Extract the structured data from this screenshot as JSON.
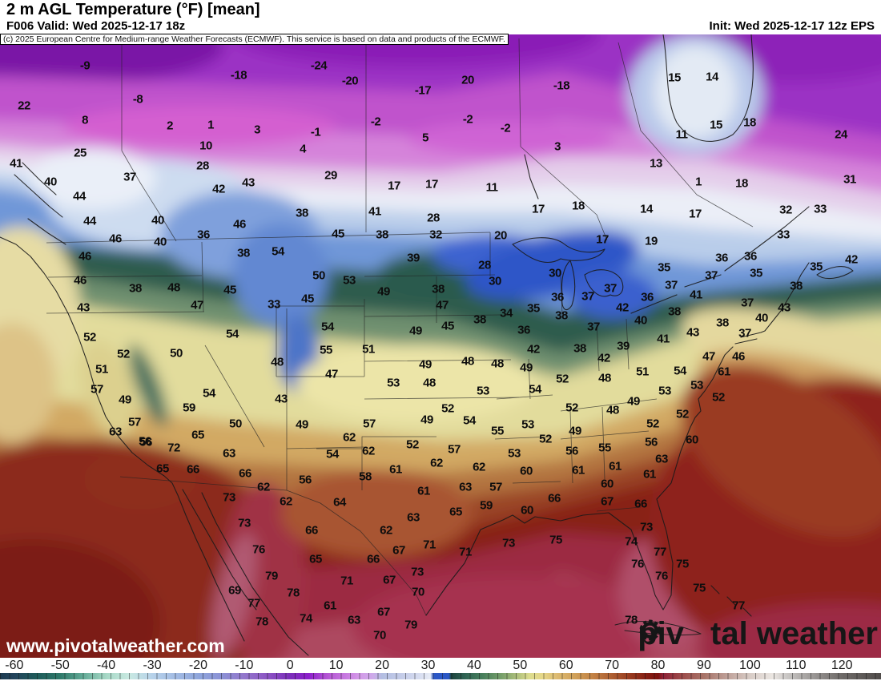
{
  "header": {
    "title": "2 m AGL Temperature (°F) [mean]",
    "valid": "F006 Valid: Wed 2025-12-17 18z",
    "init": "Init: Wed 2025-12-17 12z EPS",
    "copyright": "(c) 2025 European Centre for Medium-range Weather Forecasts (ECMWF). This service is based on data and products of the ECMWF."
  },
  "map": {
    "watermark": "www.pivotalweather.com",
    "logo": {
      "part1": "piv",
      "part2": "tal weather",
      "icon": "gear-icon"
    },
    "units": "°F",
    "station_values": [
      [
        -9,
        106,
        82
      ],
      [
        -18,
        298,
        94
      ],
      [
        22,
        30,
        132
      ],
      [
        -8,
        172,
        124
      ],
      [
        8,
        106,
        150
      ],
      [
        2,
        212,
        157
      ],
      [
        1,
        263,
        156
      ],
      [
        3,
        321,
        162
      ],
      [
        25,
        100,
        191
      ],
      [
        10,
        257,
        182
      ],
      [
        28,
        253,
        207
      ],
      [
        41,
        20,
        204
      ],
      [
        37,
        162,
        221
      ],
      [
        40,
        63,
        227
      ],
      [
        42,
        273,
        236
      ],
      [
        43,
        310,
        228
      ],
      [
        44,
        99,
        245
      ],
      [
        44,
        112,
        276
      ],
      [
        40,
        197,
        275
      ],
      [
        46,
        299,
        280
      ],
      [
        36,
        254,
        293
      ],
      [
        46,
        144,
        298
      ],
      [
        40,
        200,
        302
      ],
      [
        38,
        377,
        266
      ],
      [
        -24,
        398,
        82
      ],
      [
        -20,
        437,
        101
      ],
      [
        20,
        584,
        100
      ],
      [
        -17,
        528,
        113
      ],
      [
        -18,
        701,
        107
      ],
      [
        -2,
        469,
        152
      ],
      [
        -1,
        394,
        165
      ],
      [
        -2,
        584,
        149
      ],
      [
        -2,
        631,
        160
      ],
      [
        5,
        531,
        172
      ],
      [
        4,
        378,
        186
      ],
      [
        3,
        696,
        183
      ],
      [
        29,
        413,
        219
      ],
      [
        17,
        492,
        232
      ],
      [
        17,
        539,
        230
      ],
      [
        11,
        614,
        234
      ],
      [
        17,
        672,
        261
      ],
      [
        18,
        722,
        257
      ],
      [
        41,
        468,
        264
      ],
      [
        28,
        541,
        272
      ],
      [
        45,
        422,
        292
      ],
      [
        38,
        477,
        293
      ],
      [
        32,
        544,
        293
      ],
      [
        20,
        625,
        294
      ],
      [
        15,
        842,
        97
      ],
      [
        14,
        889,
        96
      ],
      [
        18,
        936,
        153
      ],
      [
        15,
        894,
        156
      ],
      [
        24,
        1050,
        168
      ],
      [
        11,
        851,
        168
      ],
      [
        13,
        819,
        204
      ],
      [
        1,
        872,
        227
      ],
      [
        18,
        926,
        229
      ],
      [
        31,
        1061,
        224
      ],
      [
        14,
        807,
        261
      ],
      [
        17,
        868,
        267
      ],
      [
        32,
        981,
        262
      ],
      [
        33,
        1024,
        261
      ],
      [
        33,
        978,
        293
      ],
      [
        19,
        813,
        301
      ],
      [
        17,
        752,
        299
      ],
      [
        46,
        106,
        320
      ],
      [
        38,
        304,
        316
      ],
      [
        54,
        347,
        314
      ],
      [
        46,
        100,
        350
      ],
      [
        38,
        169,
        360
      ],
      [
        48,
        217,
        359
      ],
      [
        45,
        287,
        362
      ],
      [
        43,
        104,
        384
      ],
      [
        47,
        246,
        381
      ],
      [
        33,
        342,
        380
      ],
      [
        52,
        112,
        421
      ],
      [
        54,
        290,
        417
      ],
      [
        52,
        154,
        442
      ],
      [
        50,
        220,
        441
      ],
      [
        48,
        346,
        452
      ],
      [
        51,
        127,
        461
      ],
      [
        57,
        121,
        486
      ],
      [
        54,
        261,
        491
      ],
      [
        43,
        351,
        498
      ],
      [
        49,
        156,
        499
      ],
      [
        59,
        236,
        509
      ],
      [
        57,
        168,
        527
      ],
      [
        50,
        294,
        529
      ],
      [
        63,
        144,
        539
      ],
      [
        56,
        181,
        551
      ],
      [
        65,
        247,
        543
      ],
      [
        49,
        377,
        530
      ],
      [
        39,
        516,
        322
      ],
      [
        28,
        605,
        331
      ],
      [
        30,
        618,
        351
      ],
      [
        30,
        693,
        341
      ],
      [
        50,
        398,
        344
      ],
      [
        53,
        436,
        350
      ],
      [
        49,
        479,
        364
      ],
      [
        38,
        547,
        361
      ],
      [
        45,
        384,
        373
      ],
      [
        47,
        552,
        381
      ],
      [
        35,
        666,
        385
      ],
      [
        34,
        632,
        391
      ],
      [
        36,
        696,
        371
      ],
      [
        38,
        701,
        394
      ],
      [
        38,
        599,
        399
      ],
      [
        54,
        409,
        408
      ],
      [
        45,
        559,
        407
      ],
      [
        36,
        654,
        412
      ],
      [
        49,
        519,
        413
      ],
      [
        55,
        407,
        437
      ],
      [
        51,
        460,
        436
      ],
      [
        42,
        666,
        436
      ],
      [
        47,
        414,
        467
      ],
      [
        49,
        531,
        455
      ],
      [
        48,
        584,
        451
      ],
      [
        48,
        621,
        454
      ],
      [
        49,
        657,
        459
      ],
      [
        52,
        702,
        473
      ],
      [
        53,
        491,
        478
      ],
      [
        48,
        536,
        478
      ],
      [
        53,
        603,
        488
      ],
      [
        54,
        668,
        486
      ],
      [
        52,
        714,
        509
      ],
      [
        52,
        559,
        510
      ],
      [
        49,
        533,
        524
      ],
      [
        54,
        586,
        525
      ],
      [
        55,
        621,
        538
      ],
      [
        53,
        659,
        530
      ],
      [
        49,
        718,
        538
      ],
      [
        52,
        681,
        548
      ],
      [
        57,
        461,
        529
      ],
      [
        62,
        436,
        546
      ],
      [
        52,
        515,
        555
      ],
      [
        36,
        901,
        322
      ],
      [
        36,
        937,
        320
      ],
      [
        35,
        829,
        334
      ],
      [
        35,
        1019,
        333
      ],
      [
        35,
        944,
        341
      ],
      [
        42,
        1063,
        324
      ],
      [
        37,
        888,
        344
      ],
      [
        37,
        838,
        356
      ],
      [
        37,
        762,
        360
      ],
      [
        37,
        734,
        370
      ],
      [
        41,
        869,
        368
      ],
      [
        36,
        808,
        371
      ],
      [
        38,
        994,
        357
      ],
      [
        42,
        777,
        384
      ],
      [
        37,
        933,
        378
      ],
      [
        43,
        979,
        384
      ],
      [
        40,
        800,
        400
      ],
      [
        38,
        842,
        389
      ],
      [
        40,
        951,
        397
      ],
      [
        38,
        902,
        403
      ],
      [
        37,
        741,
        408
      ],
      [
        43,
        865,
        415
      ],
      [
        37,
        930,
        416
      ],
      [
        41,
        828,
        423
      ],
      [
        39,
        778,
        432
      ],
      [
        38,
        724,
        435
      ],
      [
        42,
        754,
        447
      ],
      [
        47,
        885,
        445
      ],
      [
        46,
        922,
        445
      ],
      [
        51,
        802,
        464
      ],
      [
        54,
        849,
        463
      ],
      [
        61,
        904,
        464
      ],
      [
        48,
        755,
        472
      ],
      [
        53,
        870,
        481
      ],
      [
        53,
        830,
        488
      ],
      [
        52,
        897,
        496
      ],
      [
        49,
        791,
        501
      ],
      [
        48,
        765,
        512
      ],
      [
        52,
        852,
        517
      ],
      [
        52,
        815,
        529
      ],
      [
        56,
        182,
        552
      ],
      [
        72,
        217,
        559
      ],
      [
        63,
        286,
        566
      ],
      [
        65,
        203,
        585
      ],
      [
        66,
        241,
        586
      ],
      [
        66,
        306,
        591
      ],
      [
        62,
        329,
        608
      ],
      [
        62,
        357,
        626
      ],
      [
        73,
        286,
        621
      ],
      [
        73,
        305,
        653
      ],
      [
        76,
        323,
        686
      ],
      [
        79,
        339,
        719
      ],
      [
        78,
        366,
        740
      ],
      [
        69,
        293,
        737
      ],
      [
        77,
        317,
        753
      ],
      [
        78,
        327,
        776
      ],
      [
        54,
        415,
        567
      ],
      [
        62,
        460,
        563
      ],
      [
        57,
        567,
        561
      ],
      [
        53,
        642,
        566
      ],
      [
        56,
        714,
        563
      ],
      [
        62,
        545,
        578
      ],
      [
        62,
        598,
        583
      ],
      [
        60,
        657,
        588
      ],
      [
        61,
        722,
        587
      ],
      [
        61,
        494,
        586
      ],
      [
        58,
        456,
        595
      ],
      [
        56,
        381,
        599
      ],
      [
        61,
        529,
        613
      ],
      [
        63,
        581,
        608
      ],
      [
        57,
        619,
        608
      ],
      [
        64,
        424,
        627
      ],
      [
        59,
        607,
        631
      ],
      [
        66,
        692,
        622
      ],
      [
        60,
        658,
        637
      ],
      [
        63,
        516,
        646
      ],
      [
        65,
        569,
        639
      ],
      [
        66,
        389,
        662
      ],
      [
        62,
        482,
        662
      ],
      [
        73,
        635,
        678
      ],
      [
        75,
        694,
        674
      ],
      [
        71,
        536,
        680
      ],
      [
        71,
        581,
        689
      ],
      [
        67,
        498,
        687
      ],
      [
        65,
        394,
        698
      ],
      [
        66,
        466,
        698
      ],
      [
        73,
        521,
        714
      ],
      [
        71,
        433,
        725
      ],
      [
        67,
        486,
        724
      ],
      [
        70,
        522,
        739
      ],
      [
        61,
        412,
        756
      ],
      [
        74,
        382,
        772
      ],
      [
        63,
        442,
        774
      ],
      [
        67,
        479,
        764
      ],
      [
        79,
        513,
        780
      ],
      [
        70,
        474,
        793
      ],
      [
        55,
        755,
        559
      ],
      [
        56,
        813,
        552
      ],
      [
        60,
        864,
        549
      ],
      [
        61,
        768,
        582
      ],
      [
        63,
        826,
        573
      ],
      [
        61,
        811,
        592
      ],
      [
        60,
        758,
        604
      ],
      [
        67,
        758,
        626
      ],
      [
        66,
        800,
        629
      ],
      [
        73,
        807,
        658
      ],
      [
        74,
        788,
        676
      ],
      [
        77,
        824,
        689
      ],
      [
        76,
        796,
        704
      ],
      [
        75,
        852,
        704
      ],
      [
        76,
        826,
        719
      ],
      [
        75,
        873,
        734
      ],
      [
        77,
        922,
        756
      ],
      [
        78,
        788,
        774
      ]
    ]
  },
  "colorbar": {
    "unit": "°F",
    "scale_min": -63.1,
    "scale_max": 128.5,
    "ticks": [
      -60,
      -50,
      -40,
      -30,
      -20,
      -10,
      0,
      10,
      20,
      30,
      40,
      50,
      60,
      70,
      80,
      90,
      100,
      110,
      120
    ],
    "stops": [
      [
        -63.1,
        "#1d3a50"
      ],
      [
        -60,
        "#23445c"
      ],
      [
        -55,
        "#1e5c5a"
      ],
      [
        -50,
        "#2f7a6a"
      ],
      [
        -45,
        "#63ab97"
      ],
      [
        -40,
        "#a7d8c6"
      ],
      [
        -35,
        "#c9e9e2"
      ],
      [
        -30,
        "#b7d2ea"
      ],
      [
        -25,
        "#a3bce4"
      ],
      [
        -20,
        "#8fa6dc"
      ],
      [
        -15,
        "#8b92d6"
      ],
      [
        -10,
        "#9377cc"
      ],
      [
        -5,
        "#8c55c4"
      ],
      [
        0,
        "#7b2eba"
      ],
      [
        4,
        "#8d1ecc"
      ],
      [
        8,
        "#b455d4"
      ],
      [
        12,
        "#c778e0"
      ],
      [
        15,
        "#d49ae8"
      ],
      [
        18,
        "#ceaaea"
      ],
      [
        20,
        "#b3bee2"
      ],
      [
        24,
        "#c3cbe8"
      ],
      [
        28,
        "#d6dcf0"
      ],
      [
        30.5,
        "#e8ecf6"
      ],
      [
        31.2,
        "#2b57c6"
      ],
      [
        34.5,
        "#2b57c6"
      ],
      [
        35,
        "#1d453f"
      ],
      [
        38,
        "#2f6353"
      ],
      [
        42,
        "#49805c"
      ],
      [
        46,
        "#78a06b"
      ],
      [
        49,
        "#a8bc7a"
      ],
      [
        52,
        "#dcdc8e"
      ],
      [
        55,
        "#e6d788"
      ],
      [
        58,
        "#ddbb72"
      ],
      [
        62,
        "#d0a058"
      ],
      [
        66,
        "#c28145"
      ],
      [
        70,
        "#ad5e31"
      ],
      [
        74,
        "#97391e"
      ],
      [
        78,
        "#841c12"
      ],
      [
        80,
        "#7c120e"
      ],
      [
        81,
        "#8e2036"
      ],
      [
        85,
        "#9d4a4a"
      ],
      [
        90,
        "#a87468"
      ],
      [
        95,
        "#bfa098"
      ],
      [
        100,
        "#d8ccc6"
      ],
      [
        105,
        "#ebe6e2"
      ],
      [
        108,
        "#cbc8c6"
      ],
      [
        112,
        "#a9a6a4"
      ],
      [
        116,
        "#8a8684"
      ],
      [
        120,
        "#6e6a68"
      ],
      [
        128.5,
        "#504c4a"
      ]
    ]
  }
}
